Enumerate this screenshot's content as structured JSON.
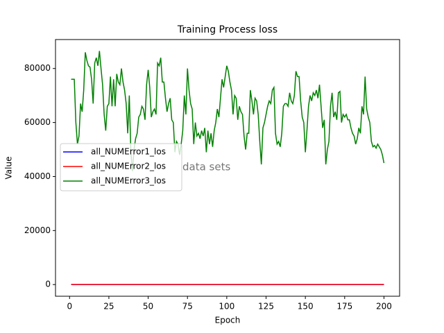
{
  "chart_data": {
    "type": "line",
    "title": "Training Process loss",
    "xlabel": "Epoch",
    "ylabel": "Value",
    "annotation": "data sets",
    "x": [
      1,
      2,
      3,
      4,
      5,
      6,
      7,
      8,
      9,
      10,
      11,
      12,
      13,
      14,
      15,
      16,
      17,
      18,
      19,
      20,
      21,
      22,
      23,
      24,
      25,
      26,
      27,
      28,
      29,
      30,
      31,
      32,
      33,
      34,
      35,
      36,
      37,
      38,
      39,
      40,
      41,
      42,
      43,
      44,
      45,
      46,
      47,
      48,
      49,
      50,
      51,
      52,
      53,
      54,
      55,
      56,
      57,
      58,
      59,
      60,
      61,
      62,
      63,
      64,
      65,
      66,
      67,
      68,
      69,
      70,
      71,
      72,
      73,
      74,
      75,
      76,
      77,
      78,
      79,
      80,
      81,
      82,
      83,
      84,
      85,
      86,
      87,
      88,
      89,
      90,
      91,
      92,
      93,
      94,
      95,
      96,
      97,
      98,
      99,
      100,
      101,
      102,
      103,
      104,
      105,
      106,
      107,
      108,
      109,
      110,
      111,
      112,
      113,
      114,
      115,
      116,
      117,
      118,
      119,
      120,
      121,
      122,
      123,
      124,
      125,
      126,
      127,
      128,
      129,
      130,
      131,
      132,
      133,
      134,
      135,
      136,
      137,
      138,
      139,
      140,
      141,
      142,
      143,
      144,
      145,
      146,
      147,
      148,
      149,
      150,
      151,
      152,
      153,
      154,
      155,
      156,
      157,
      158,
      159,
      160,
      161,
      162,
      163,
      164,
      165,
      166,
      167,
      168,
      169,
      170,
      171,
      172,
      173,
      174,
      175,
      176,
      177,
      178,
      179,
      180,
      181,
      182,
      183,
      184,
      185,
      186,
      187,
      188,
      189,
      190,
      191,
      192,
      193,
      194,
      195,
      196,
      197,
      198,
      199,
      200
    ],
    "series": [
      {
        "name": "all_NUMError1_los",
        "color": "#0000ff",
        "values": [
          0,
          0,
          0,
          0,
          0,
          0,
          0,
          0,
          0,
          0,
          0,
          0,
          0,
          0,
          0,
          0,
          0,
          0,
          0,
          0,
          0,
          0,
          0,
          0,
          0,
          0,
          0,
          0,
          0,
          0,
          0,
          0,
          0,
          0,
          0,
          0,
          0,
          0,
          0,
          0,
          0,
          0,
          0,
          0,
          0,
          0,
          0,
          0,
          0,
          0,
          0,
          0,
          0,
          0,
          0,
          0,
          0,
          0,
          0,
          0,
          0,
          0,
          0,
          0,
          0,
          0,
          0,
          0,
          0,
          0,
          0,
          0,
          0,
          0,
          0,
          0,
          0,
          0,
          0,
          0,
          0,
          0,
          0,
          0,
          0,
          0,
          0,
          0,
          0,
          0,
          0,
          0,
          0,
          0,
          0,
          0,
          0,
          0,
          0,
          0,
          0,
          0,
          0,
          0,
          0,
          0,
          0,
          0,
          0,
          0,
          0,
          0,
          0,
          0,
          0,
          0,
          0,
          0,
          0,
          0,
          0,
          0,
          0,
          0,
          0,
          0,
          0,
          0,
          0,
          0,
          0,
          0,
          0,
          0,
          0,
          0,
          0,
          0,
          0,
          0,
          0,
          0,
          0,
          0,
          0,
          0,
          0,
          0,
          0,
          0,
          0,
          0,
          0,
          0,
          0,
          0,
          0,
          0,
          0,
          0,
          0,
          0,
          0,
          0,
          0,
          0,
          0,
          0,
          0,
          0,
          0,
          0,
          0,
          0,
          0,
          0,
          0,
          0,
          0,
          0,
          0,
          0,
          0,
          0,
          0,
          0,
          0,
          0,
          0,
          0,
          0,
          0,
          0,
          0,
          0,
          0,
          0,
          0,
          0,
          0
        ]
      },
      {
        "name": "all_NUMError2_los",
        "color": "#ff0000",
        "values": [
          0,
          0,
          0,
          0,
          0,
          0,
          0,
          0,
          0,
          0,
          0,
          0,
          0,
          0,
          0,
          0,
          0,
          0,
          0,
          0,
          0,
          0,
          0,
          0,
          0,
          0,
          0,
          0,
          0,
          0,
          0,
          0,
          0,
          0,
          0,
          0,
          0,
          0,
          0,
          0,
          0,
          0,
          0,
          0,
          0,
          0,
          0,
          0,
          0,
          0,
          0,
          0,
          0,
          0,
          0,
          0,
          0,
          0,
          0,
          0,
          0,
          0,
          0,
          0,
          0,
          0,
          0,
          0,
          0,
          0,
          0,
          0,
          0,
          0,
          0,
          0,
          0,
          0,
          0,
          0,
          0,
          0,
          0,
          0,
          0,
          0,
          0,
          0,
          0,
          0,
          0,
          0,
          0,
          0,
          0,
          0,
          0,
          0,
          0,
          0,
          0,
          0,
          0,
          0,
          0,
          0,
          0,
          0,
          0,
          0,
          0,
          0,
          0,
          0,
          0,
          0,
          0,
          0,
          0,
          0,
          0,
          0,
          0,
          0,
          0,
          0,
          0,
          0,
          0,
          0,
          0,
          0,
          0,
          0,
          0,
          0,
          0,
          0,
          0,
          0,
          0,
          0,
          0,
          0,
          0,
          0,
          0,
          0,
          0,
          0,
          0,
          0,
          0,
          0,
          0,
          0,
          0,
          0,
          0,
          0,
          0,
          0,
          0,
          0,
          0,
          0,
          0,
          0,
          0,
          0,
          0,
          0,
          0,
          0,
          0,
          0,
          0,
          0,
          0,
          0,
          0,
          0,
          0,
          0,
          0,
          0,
          0,
          0,
          0,
          0,
          0,
          0,
          0,
          0,
          0,
          0,
          0,
          0,
          0,
          0
        ]
      },
      {
        "name": "all_NUMError3_los",
        "color": "#008000",
        "values": [
          76000,
          76000,
          76000,
          60000,
          52000,
          55000,
          67000,
          64000,
          72000,
          86000,
          83000,
          81000,
          80500,
          76000,
          67000,
          82000,
          84000,
          81000,
          86500,
          80000,
          74000,
          63000,
          57000,
          66000,
          67000,
          77000,
          66000,
          76000,
          66000,
          78000,
          75000,
          74000,
          80000,
          75000,
          72000,
          67000,
          56000,
          70000,
          49000,
          42000,
          50000,
          54000,
          56000,
          62000,
          63000,
          66000,
          65000,
          61000,
          74000,
          79500,
          73000,
          62000,
          64000,
          65000,
          63000,
          82000,
          81000,
          84000,
          75000,
          75000,
          69000,
          64000,
          67000,
          69000,
          61000,
          60000,
          49000,
          53000,
          52000,
          48000,
          52000,
          57000,
          70000,
          63000,
          80000,
          72000,
          67000,
          65000,
          52000,
          60000,
          55000,
          56000,
          54000,
          57000,
          55000,
          58000,
          49000,
          57000,
          52000,
          56000,
          51000,
          57000,
          60000,
          65000,
          62000,
          69000,
          76000,
          73000,
          77000,
          81000,
          79000,
          75000,
          72000,
          63000,
          70000,
          69000,
          61000,
          66000,
          64000,
          63000,
          55000,
          50000,
          56000,
          56000,
          72000,
          68000,
          63000,
          69000,
          68000,
          63000,
          53000,
          44500,
          58000,
          60000,
          63000,
          66000,
          68000,
          67000,
          72000,
          73000,
          56000,
          52000,
          53000,
          51000,
          56000,
          66000,
          67000,
          67000,
          66000,
          71000,
          68000,
          67000,
          70000,
          79000,
          77000,
          77000,
          68000,
          62000,
          60000,
          49000,
          57000,
          66000,
          70000,
          68000,
          71000,
          70000,
          72000,
          69000,
          74000,
          66000,
          58000,
          61000,
          44500,
          50000,
          53000,
          66000,
          71000,
          62000,
          64000,
          61000,
          71000,
          71500,
          60000,
          63000,
          62000,
          63000,
          61000,
          61000,
          58000,
          56000,
          55000,
          52000,
          54000,
          58000,
          56000,
          66000,
          63000,
          77000,
          65000,
          62000,
          60000,
          53000,
          51000,
          51500,
          50500,
          52000,
          51000,
          50000,
          48000,
          45000
        ]
      }
    ],
    "xlim": [
      -8.95,
      209.95
    ],
    "xticks": [
      0,
      25,
      50,
      75,
      100,
      125,
      150,
      175,
      200
    ],
    "ylim": [
      -4320,
      90720
    ],
    "yticks": [
      0,
      20000,
      40000,
      60000,
      80000
    ],
    "legend": "left"
  }
}
